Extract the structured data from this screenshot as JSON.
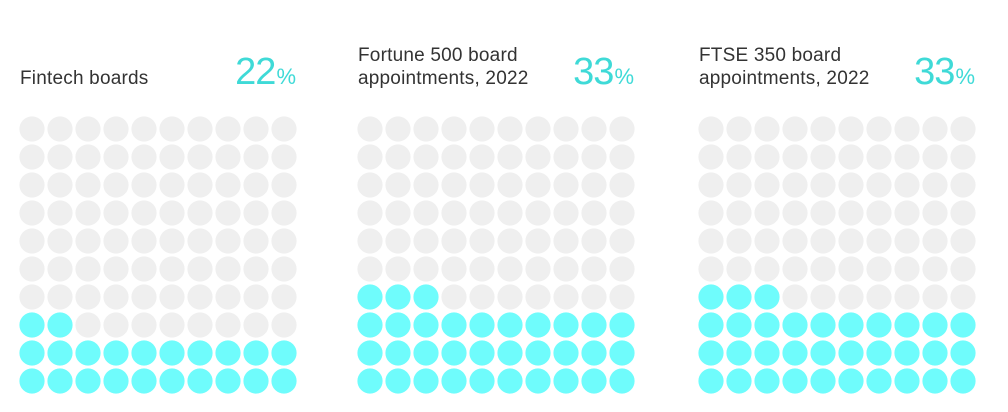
{
  "colors": {
    "filled": "#6ffcfc",
    "empty": "#efefef",
    "accent_text": "#3fdad7",
    "label_text": "#333333"
  },
  "chart_data": [
    {
      "type": "waffle",
      "label": "Fintech boards",
      "value": 22,
      "value_text": "22",
      "unit": "%",
      "total_cells": 100,
      "grid": [
        10,
        10
      ]
    },
    {
      "type": "waffle",
      "label": "Fortune 500 board appointments, 2022",
      "value": 33,
      "value_text": "33",
      "unit": "%",
      "total_cells": 100,
      "grid": [
        10,
        10
      ]
    },
    {
      "type": "waffle",
      "label": "FTSE 350 board appointments, 2022",
      "value": 33,
      "value_text": "33",
      "unit": "%",
      "total_cells": 100,
      "grid": [
        10,
        10
      ]
    }
  ]
}
